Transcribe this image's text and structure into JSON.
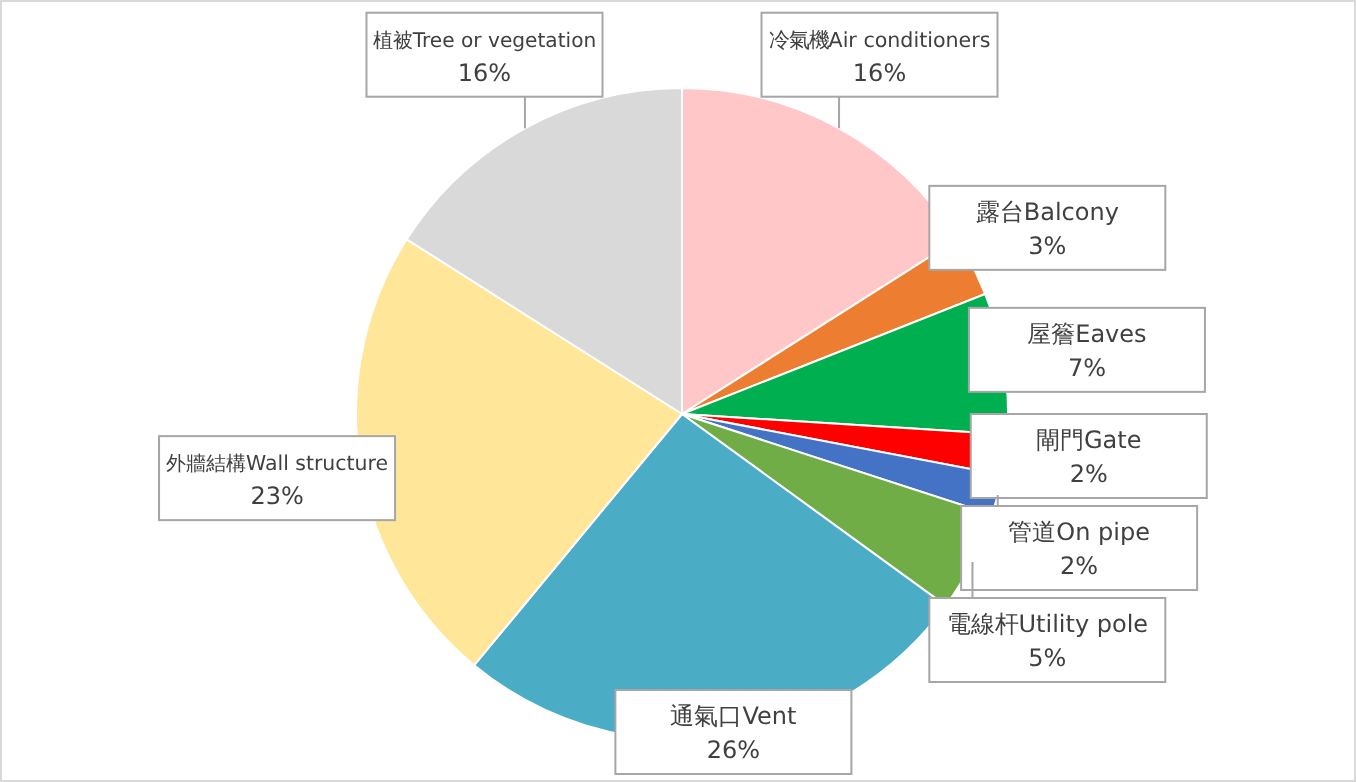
{
  "chart_data": {
    "type": "pie",
    "categories": [
      "冷氣機Air conditioners",
      "露台Balcony",
      "屋簷Eaves",
      "閘門Gate",
      "管道On pipe",
      "電線杆Utility pole",
      "通氣口Vent",
      "外牆結構Wall structure",
      "植被Tree or vegetation"
    ],
    "values": [
      16,
      3,
      7,
      2,
      2,
      5,
      26,
      23,
      16
    ],
    "value_labels": [
      "16%",
      "3%",
      "7%",
      "2%",
      "2%",
      "5%",
      "26%",
      "23%",
      "16%"
    ],
    "colors": [
      "#ffc7c7",
      "#ed7d31",
      "#00b050",
      "#ff0000",
      "#4472c4",
      "#70ad47",
      "#4bacc6",
      "#ffe699",
      "#d9d9d9"
    ]
  }
}
